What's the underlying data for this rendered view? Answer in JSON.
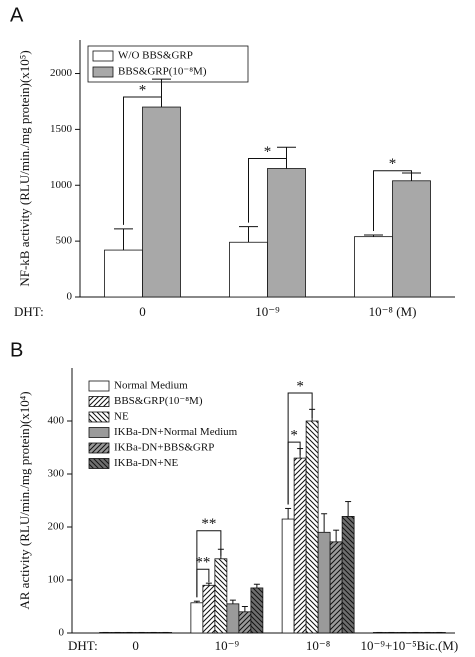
{
  "chart_data": [
    {
      "type": "bar",
      "panel": "A",
      "y_label": "NF-kB activity (RLU/min./mg protein)(x10⁵)",
      "x_label": "DHT:",
      "categories": [
        "0",
        "10⁻⁹",
        "10⁻⁸ (M)"
      ],
      "series": [
        {
          "name": "W/O BBS&GRP",
          "color": "#ffffff",
          "values": [
            420,
            490,
            540
          ],
          "errors": [
            190,
            140,
            15
          ]
        },
        {
          "name": "BBS&GRP(10⁻⁸M)",
          "color": "#a8a8a8",
          "values": [
            1700,
            1150,
            1040
          ],
          "errors": [
            250,
            190,
            70
          ]
        }
      ],
      "annotations": [
        {
          "text": "*",
          "category": 0,
          "series": [
            0,
            1
          ]
        },
        {
          "text": "*",
          "category": 1,
          "series": [
            0,
            1
          ]
        },
        {
          "text": "*",
          "category": 2,
          "series": [
            0,
            1
          ]
        }
      ],
      "ylim": [
        0,
        2300
      ],
      "yticks": [
        0,
        500,
        1000,
        1500,
        2000
      ],
      "legend": "upper left"
    },
    {
      "type": "bar",
      "panel": "B",
      "y_label": "AR activity (RLU/min./mg protein)(x10⁴)",
      "x_label": "DHT:",
      "categories": [
        "0",
        "10⁻⁹",
        "10⁻⁸",
        "10⁻⁹+10⁻⁵Bic.(M)"
      ],
      "series": [
        {
          "name": "Normal Medium",
          "color": "#ffffff",
          "values": [
            1,
            57,
            215,
            1
          ],
          "errors": [
            0,
            3,
            20,
            0
          ]
        },
        {
          "name": "BBS&GRP(10⁻⁸M)",
          "color": "#ffffff",
          "hatch": "/",
          "values": [
            1,
            90,
            330,
            1
          ],
          "errors": [
            0,
            4,
            18,
            0
          ]
        },
        {
          "name": "NE",
          "color": "#ffffff",
          "hatch": "\\",
          "values": [
            1,
            140,
            400,
            1
          ],
          "errors": [
            0,
            18,
            22,
            0
          ]
        },
        {
          "name": "IKBa-DN+Normal Medium",
          "color": "#9a9a9a",
          "values": [
            1,
            55,
            190,
            1
          ],
          "errors": [
            0,
            7,
            35,
            0
          ]
        },
        {
          "name": "IKBa-DN+BBS&GRP",
          "color": "#9a9a9a",
          "hatch": "/",
          "values": [
            1,
            40,
            172,
            1
          ],
          "errors": [
            0,
            10,
            22,
            0
          ]
        },
        {
          "name": "IKBa-DN+NE",
          "color": "#6e6e6e",
          "hatch": "\\",
          "values": [
            1,
            85,
            220,
            1
          ],
          "errors": [
            0,
            7,
            28,
            0
          ]
        }
      ],
      "annotations": [
        {
          "text": "**",
          "category": 1,
          "series": [
            0,
            1
          ]
        },
        {
          "text": "**",
          "category": 1,
          "series": [
            0,
            2
          ]
        },
        {
          "text": "*",
          "category": 2,
          "series": [
            0,
            1
          ]
        },
        {
          "text": "*",
          "category": 2,
          "series": [
            0,
            2
          ]
        }
      ],
      "ylim": [
        0,
        500
      ],
      "yticks": [
        0,
        100,
        200,
        300,
        400
      ],
      "legend": "upper left"
    }
  ]
}
